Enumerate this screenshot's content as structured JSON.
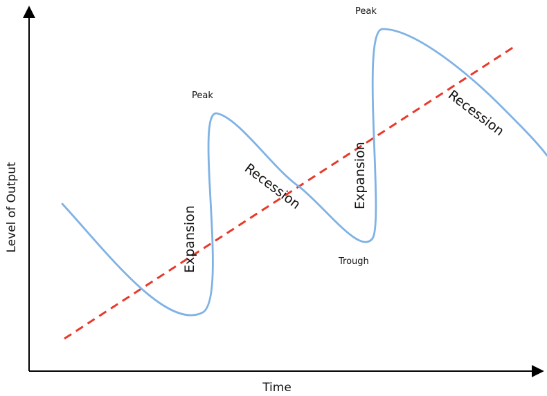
{
  "axes": {
    "x_label": "Time",
    "y_label": "Level of Output"
  },
  "colors": {
    "cycle_line": "#7fb2e5",
    "trend_line": "#e8392a",
    "axis": "#000000"
  },
  "labels": {
    "peak_1": "Peak",
    "peak_2": "Peak",
    "trough": "Trough",
    "expansion_1": "Expansion",
    "expansion_2": "Expansion",
    "recession_1": "Recession",
    "recession_2": "Recession"
  }
}
